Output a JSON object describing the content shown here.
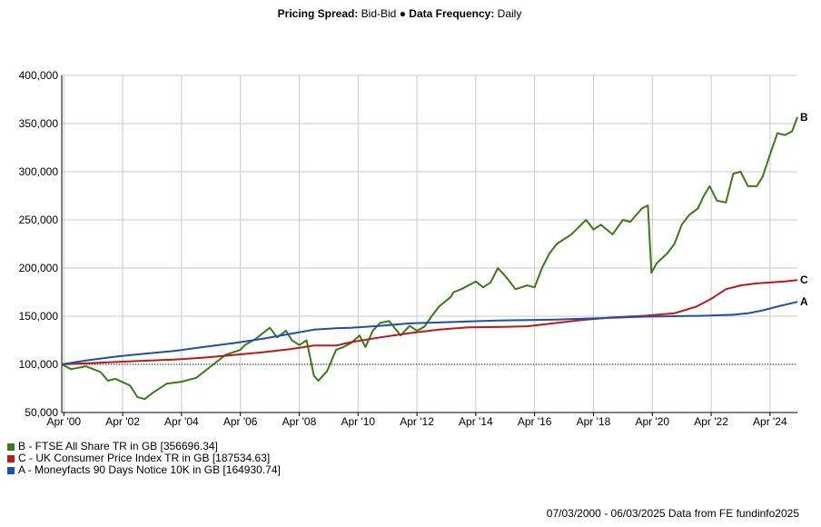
{
  "header": {
    "spread_label": "Pricing Spread:",
    "spread_value": "Bid-Bid",
    "separator": "●",
    "frequency_label": "Data Frequency:",
    "frequency_value": "Daily"
  },
  "footer": {
    "text": "07/03/2000 - 06/03/2025 Data from FE fundinfo2025"
  },
  "colors": {
    "B": "#3a7a18",
    "C": "#c01818",
    "A": "#1f4fa8",
    "grid": "#c8c8c8",
    "baseline": "#000000"
  },
  "chart_data": {
    "type": "line",
    "x_unit": "year",
    "xlim": [
      2000.18,
      2025.18
    ],
    "ylim": [
      50000,
      400000
    ],
    "yticks": [
      50000,
      100000,
      150000,
      200000,
      250000,
      300000,
      350000,
      400000
    ],
    "ytick_labels": [
      "50,000",
      "100,000",
      "150,000",
      "200,000",
      "250,000",
      "300,000",
      "350,000",
      "400,000"
    ],
    "xticks": [
      2000.25,
      2002.25,
      2004.25,
      2006.25,
      2008.25,
      2010.25,
      2012.25,
      2014.25,
      2016.25,
      2018.25,
      2020.25,
      2022.25,
      2024.25
    ],
    "xtick_labels": [
      "Apr '00",
      "Apr '02",
      "Apr '04",
      "Apr '06",
      "Apr '08",
      "Apr '10",
      "Apr '12",
      "Apr '14",
      "Apr '16",
      "Apr '18",
      "Apr '20",
      "Apr '22",
      "Apr '24"
    ],
    "reference_line": 100000,
    "grid": true,
    "legend_position": "bottom-left",
    "series": [
      {
        "id": "B",
        "name": "B - FTSE All Share TR in GB [356696.34]",
        "end_label": "B",
        "x": [
          2000.18,
          2000.5,
          2001.0,
          2001.5,
          2001.75,
          2002.0,
          2002.5,
          2002.75,
          2003.0,
          2003.25,
          2003.75,
          2004.25,
          2004.75,
          2005.25,
          2005.75,
          2006.25,
          2006.4,
          2006.75,
          2007.25,
          2007.5,
          2007.8,
          2008.0,
          2008.25,
          2008.5,
          2008.75,
          2008.9,
          2009.2,
          2009.5,
          2009.75,
          2010.0,
          2010.3,
          2010.5,
          2010.75,
          2011.0,
          2011.3,
          2011.7,
          2012.0,
          2012.25,
          2012.5,
          2012.75,
          2013.0,
          2013.4,
          2013.5,
          2013.75,
          2014.0,
          2014.25,
          2014.5,
          2014.75,
          2015.0,
          2015.3,
          2015.6,
          2016.0,
          2016.25,
          2016.5,
          2016.75,
          2017.0,
          2017.5,
          2018.0,
          2018.25,
          2018.5,
          2018.9,
          2019.25,
          2019.5,
          2019.9,
          2020.1,
          2020.22,
          2020.4,
          2020.75,
          2021.0,
          2021.25,
          2021.5,
          2021.8,
          2022.0,
          2022.2,
          2022.45,
          2022.75,
          2023.0,
          2023.25,
          2023.5,
          2023.8,
          2024.0,
          2024.25,
          2024.5,
          2024.75,
          2025.0,
          2025.18
        ],
        "values": [
          100000,
          95000,
          98000,
          92000,
          83000,
          85000,
          78000,
          66000,
          64000,
          70000,
          80000,
          82000,
          86000,
          98000,
          110000,
          115000,
          120000,
          126000,
          138000,
          128000,
          135000,
          125000,
          120000,
          125000,
          88000,
          83000,
          93000,
          115000,
          118000,
          122000,
          130000,
          118000,
          135000,
          143000,
          145000,
          130000,
          140000,
          135000,
          139000,
          150000,
          160000,
          170000,
          175000,
          178000,
          182000,
          186000,
          180000,
          185000,
          200000,
          190000,
          178000,
          182000,
          180000,
          200000,
          215000,
          225000,
          235000,
          250000,
          240000,
          245000,
          235000,
          250000,
          248000,
          262000,
          265000,
          195000,
          205000,
          215000,
          225000,
          245000,
          255000,
          262000,
          275000,
          285000,
          270000,
          268000,
          298000,
          300000,
          285000,
          285000,
          295000,
          318000,
          340000,
          338000,
          342000,
          356696
        ]
      },
      {
        "id": "C",
        "name": "C - UK Consumer Price Index TR in GB [187534.63]",
        "end_label": "C",
        "x": [
          2000.18,
          2001.0,
          2002.0,
          2003.0,
          2004.0,
          2005.0,
          2006.0,
          2007.0,
          2008.0,
          2008.75,
          2009.5,
          2010.0,
          2011.0,
          2012.0,
          2013.0,
          2014.0,
          2015.0,
          2016.0,
          2017.0,
          2018.0,
          2019.0,
          2020.0,
          2021.0,
          2021.75,
          2022.25,
          2022.75,
          2023.25,
          2023.75,
          2024.25,
          2024.75,
          2025.18
        ],
        "values": [
          100000,
          101000,
          102500,
          103800,
          105000,
          107000,
          109600,
          112500,
          116000,
          119500,
          119500,
          123000,
          128000,
          132500,
          136000,
          138500,
          138800,
          139500,
          143000,
          146500,
          149000,
          150500,
          153000,
          160000,
          168000,
          178000,
          182000,
          184000,
          185000,
          186000,
          187535
        ]
      },
      {
        "id": "A",
        "name": "A - Moneyfacts 90 Days Notice 10K in GB [164930.74]",
        "end_label": "A",
        "x": [
          2000.18,
          2001.0,
          2002.0,
          2003.0,
          2004.0,
          2005.0,
          2006.0,
          2007.0,
          2008.0,
          2008.75,
          2009.5,
          2010.0,
          2011.0,
          2012.0,
          2013.0,
          2014.0,
          2015.0,
          2016.0,
          2017.0,
          2018.0,
          2019.0,
          2020.0,
          2021.0,
          2022.0,
          2023.0,
          2023.5,
          2024.0,
          2024.5,
          2025.18
        ],
        "values": [
          100000,
          104000,
          108000,
          111000,
          114000,
          118000,
          122000,
          126500,
          132000,
          136000,
          137500,
          138000,
          140000,
          142500,
          143500,
          144500,
          145500,
          146000,
          146500,
          147500,
          148500,
          149500,
          150000,
          150500,
          151500,
          153000,
          156000,
          160000,
          164931
        ]
      }
    ]
  },
  "legend": [
    {
      "id": "B",
      "label": "B - FTSE All Share TR in GB [356696.34]"
    },
    {
      "id": "C",
      "label": "C - UK Consumer Price Index TR in GB [187534.63]"
    },
    {
      "id": "A",
      "label": "A - Moneyfacts 90 Days Notice 10K in GB [164930.74]"
    }
  ]
}
